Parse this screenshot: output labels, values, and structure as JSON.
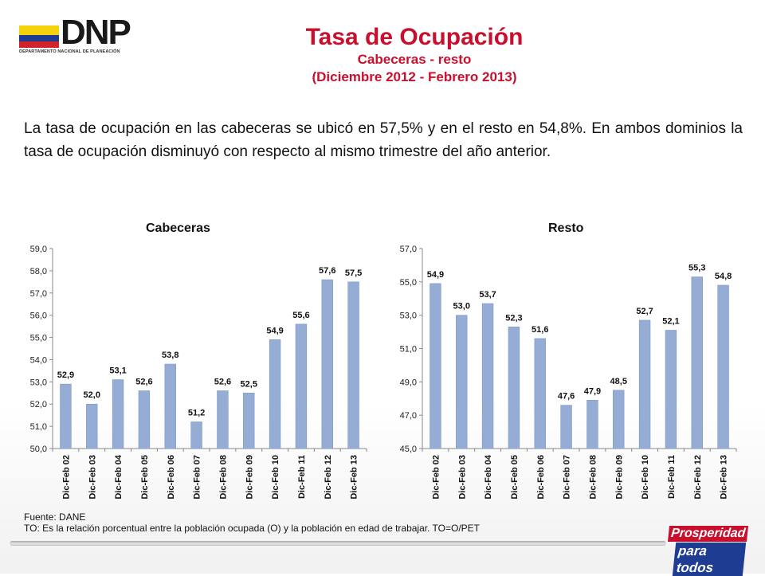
{
  "header": {
    "logo_text": "DNP",
    "logo_subtext": "DEPARTAMENTO NACIONAL DE PLANEACIÓN",
    "title": "Tasa de Ocupación",
    "subtitle1": "Cabeceras - resto",
    "subtitle2": "(Diciembre 2012 - Febrero 2013)"
  },
  "summary": "La tasa de ocupación en las cabeceras se ubicó en 57,5% y en el resto en 54,8%. En ambos dominios la tasa de ocupación disminuyó con respecto al mismo trimestre del año anterior.",
  "footer": {
    "source": "Fuente: DANE",
    "note": "TO: Es la relación porcentual entre la población ocupada (O) y la población  en edad de trabajar. TO=O/PET"
  },
  "brand": {
    "line1": "Prosperidad",
    "line2": "para todos"
  },
  "colors": {
    "bar": "#95acd4",
    "bar_stroke": "#7f99c6",
    "title_red": "#c8102e"
  },
  "chart_data": [
    {
      "type": "bar",
      "title": "Cabeceras",
      "categories": [
        "Dic-Feb 02",
        "Dic-Feb 03",
        "Dic-Feb 04",
        "Dic-Feb 05",
        "Dic-Feb 06",
        "Dic-Feb 07",
        "Dic-Feb 08",
        "Dic-Feb 09",
        "Dic-Feb 10",
        "Dic-Feb 11",
        "Dic-Feb 12",
        "Dic-Feb 13"
      ],
      "values": [
        52.9,
        52.0,
        53.1,
        52.6,
        53.8,
        51.2,
        52.6,
        52.5,
        54.9,
        55.6,
        57.6,
        57.5
      ],
      "data_labels": [
        "52,9",
        "52,0",
        "53,1",
        "52,6",
        "53,8",
        "51,2",
        "52,6",
        "52,5",
        "54,9",
        "55,6",
        "57,6",
        "57,5"
      ],
      "ylim": [
        50,
        59
      ],
      "yticks": [
        "50,0",
        "51,0",
        "52,0",
        "53,0",
        "54,0",
        "55,0",
        "56,0",
        "57,0",
        "58,0",
        "59,0"
      ],
      "grid": false
    },
    {
      "type": "bar",
      "title": "Resto",
      "categories": [
        "Dic-Feb 02",
        "Dic-Feb 03",
        "Dic-Feb 04",
        "Dic-Feb 05",
        "Dic-Feb 06",
        "Dic-Feb 07",
        "Dic-Feb 08",
        "Dic-Feb 09",
        "Dic-Feb 10",
        "Dic-Feb 11",
        "Dic-Feb 12",
        "Dic-Feb 13"
      ],
      "values": [
        54.9,
        53.0,
        53.7,
        52.3,
        51.6,
        47.6,
        47.9,
        48.5,
        52.7,
        52.1,
        55.3,
        54.8
      ],
      "data_labels": [
        "54,9",
        "53,0",
        "53,7",
        "52,3",
        "51,6",
        "47,6",
        "47,9",
        "48,5",
        "52,7",
        "52,1",
        "55,3",
        "54,8"
      ],
      "ylim": [
        45,
        57
      ],
      "yticks": [
        "45,0",
        "47,0",
        "49,0",
        "51,0",
        "53,0",
        "55,0",
        "57,0"
      ],
      "grid": false
    }
  ]
}
